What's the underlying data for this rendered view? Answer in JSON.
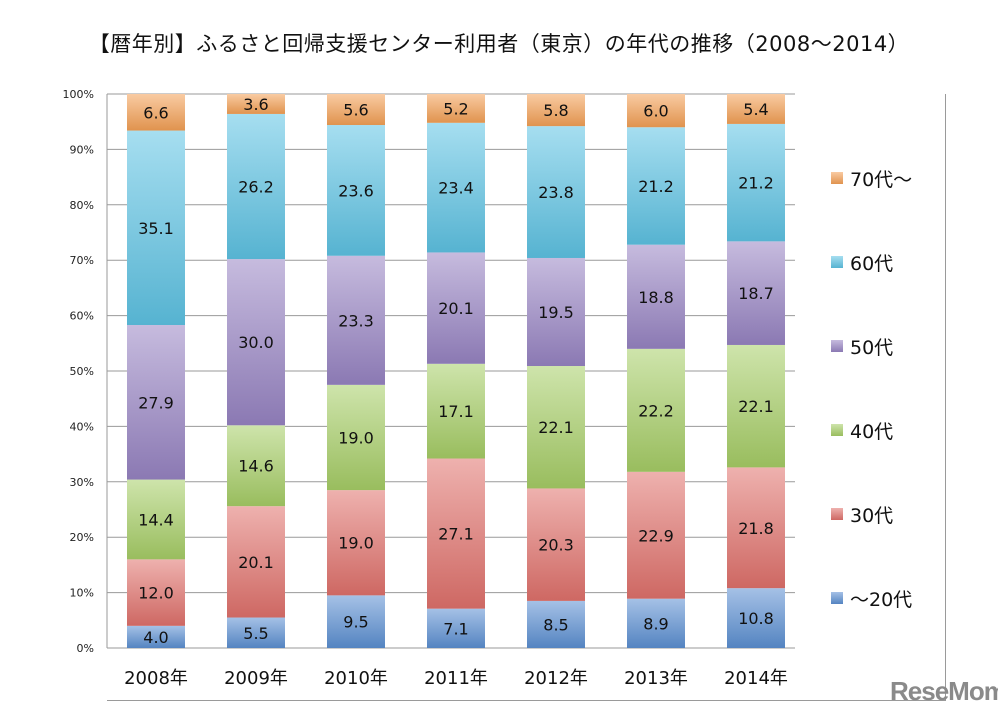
{
  "title": "【暦年別】ふるさと回帰支援センター利用者（東京）の年代の推移（2008〜2014）",
  "logo": "ReseMom",
  "chart_data": {
    "type": "bar",
    "stacked": true,
    "percent": true,
    "title": "【暦年別】ふるさと回帰支援センター利用者（東京）の年代の推移（2008〜2014）",
    "categories": [
      "2008年",
      "2009年",
      "2010年",
      "2011年",
      "2012年",
      "2013年",
      "2014年"
    ],
    "ylim": [
      0,
      100
    ],
    "yticks": [
      "0%",
      "10%",
      "20%",
      "30%",
      "40%",
      "50%",
      "60%",
      "70%",
      "80%",
      "90%",
      "100%"
    ],
    "grid": true,
    "legend_position": "right",
    "series": [
      {
        "name": "〜20代",
        "color": "#5b8fd2",
        "values": [
          4.0,
          5.5,
          9.5,
          7.1,
          8.5,
          8.9,
          10.8
        ]
      },
      {
        "name": "30代",
        "color": "#e0716c",
        "values": [
          12.0,
          20.1,
          19.0,
          27.1,
          20.3,
          22.9,
          21.8
        ]
      },
      {
        "name": "40代",
        "color": "#a6cd66",
        "values": [
          14.4,
          14.6,
          19.0,
          17.1,
          22.1,
          22.2,
          22.1
        ]
      },
      {
        "name": "50代",
        "color": "#9783c3",
        "values": [
          27.9,
          30.0,
          23.3,
          20.1,
          19.5,
          18.8,
          18.7
        ]
      },
      {
        "name": "60代",
        "color": "#5dc3e3",
        "values": [
          35.1,
          26.2,
          23.6,
          23.4,
          23.8,
          21.2,
          21.2
        ]
      },
      {
        "name": "70代〜",
        "color": "#f4a055",
        "values": [
          6.6,
          3.6,
          5.6,
          5.2,
          5.8,
          6.0,
          5.4
        ]
      }
    ]
  }
}
